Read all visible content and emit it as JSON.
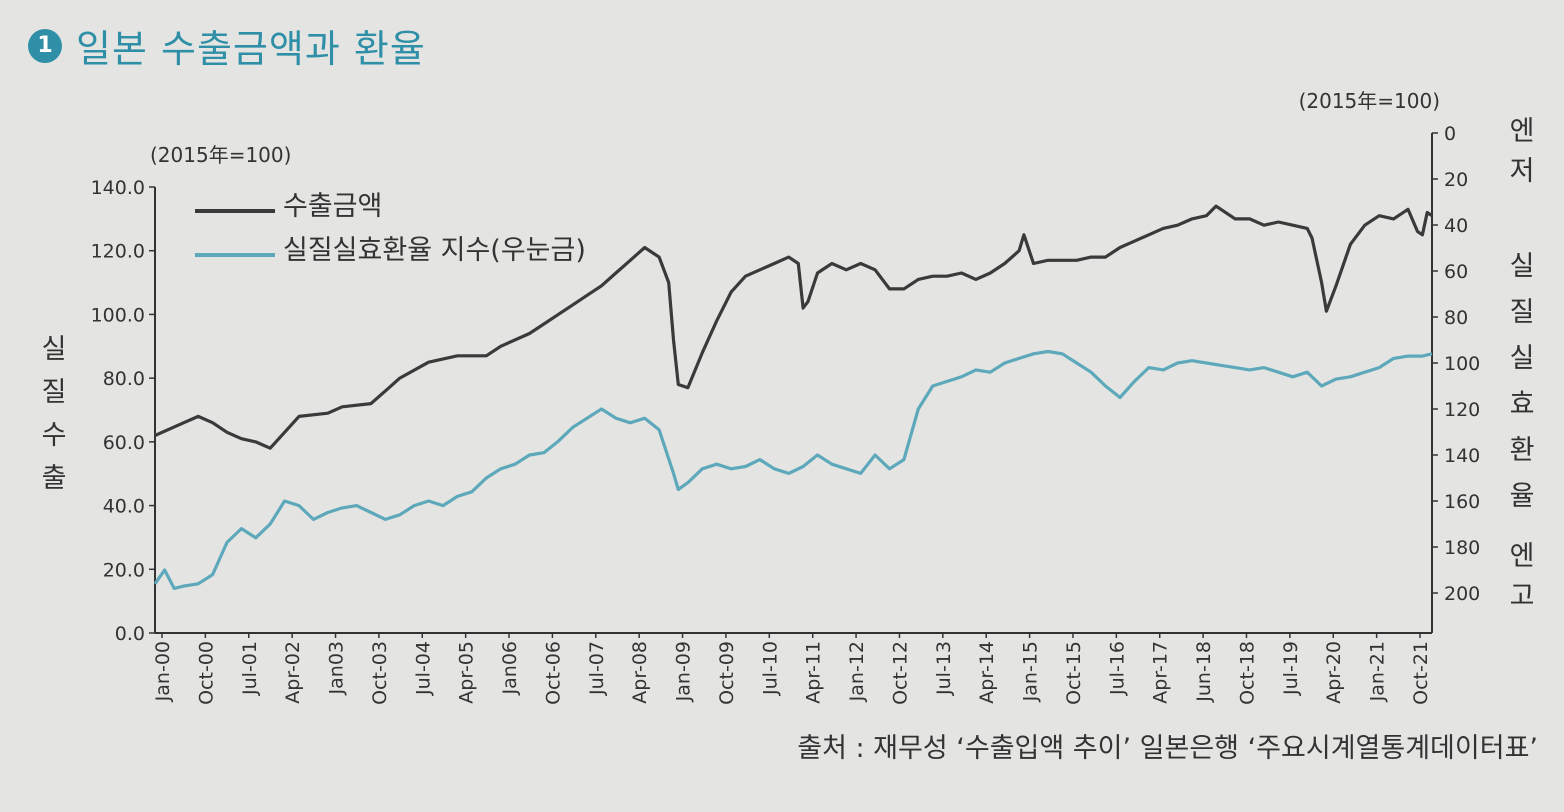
{
  "header": {
    "badge": "1",
    "title": "일본 수출금액과 환율"
  },
  "source_text": "출처 : 재무성 ‘수출입액 추이’ 일본은행 ‘주요시계열통계데이터표’",
  "colors": {
    "export": "#3a3a3a",
    "reer": "#5da8ba",
    "title": "#2f8fa7"
  },
  "chart_data": {
    "type": "line",
    "left_unit": "(2015年=100)",
    "right_unit": "(2015年=100)",
    "left_axis_label": "실질수출",
    "right_axis_top": "엔저",
    "right_axis_label": "실질실효환율",
    "right_axis_bottom": "엔고",
    "left_ylim": [
      0,
      140
    ],
    "left_ticks": [
      "0.0",
      "20.0",
      "40.0",
      "60.0",
      "80.0",
      "100.0",
      "120.0",
      "140.0"
    ],
    "right_ylim_inverted": [
      0,
      200
    ],
    "right_ticks": [
      "0",
      "20",
      "40",
      "60",
      "80",
      "100",
      "120",
      "140",
      "160",
      "180",
      "200"
    ],
    "x_tick_labels": [
      "Jan-00",
      "Oct-00",
      "Jul-01",
      "Apr-02",
      "Jan03",
      "Oct-03",
      "Jul-04",
      "Apr-05",
      "Jan06",
      "Oct-06",
      "Jul-07",
      "Apr-08",
      "Jan-09",
      "Oct-09",
      "Jul-10",
      "Apr-11",
      "Jan-12",
      "Oct-12",
      "Jul-13",
      "Apr-14",
      "Jan-15",
      "Oct-15",
      "Jul-16",
      "Apr-17",
      "Jun-18",
      "Oct-18",
      "Jul-19",
      "Apr-20",
      "Jan-21",
      "Oct-21"
    ],
    "x_range": [
      "2000-01",
      "2022-03"
    ],
    "series": [
      {
        "name": "수출금액",
        "axis": "left",
        "points": [
          [
            "2000-01",
            62
          ],
          [
            "2000-07",
            66
          ],
          [
            "2000-10",
            68
          ],
          [
            "2001-01",
            66
          ],
          [
            "2001-04",
            63
          ],
          [
            "2001-07",
            61
          ],
          [
            "2001-10",
            60
          ],
          [
            "2002-01",
            58
          ],
          [
            "2002-04",
            63
          ],
          [
            "2002-07",
            68
          ],
          [
            "2003-01",
            69
          ],
          [
            "2003-04",
            71
          ],
          [
            "2003-10",
            72
          ],
          [
            "2004-01",
            76
          ],
          [
            "2004-04",
            80
          ],
          [
            "2004-10",
            85
          ],
          [
            "2005-04",
            87
          ],
          [
            "2005-10",
            87
          ],
          [
            "2006-01",
            90
          ],
          [
            "2006-07",
            94
          ],
          [
            "2006-10",
            97
          ],
          [
            "2007-01",
            100
          ],
          [
            "2007-04",
            103
          ],
          [
            "2007-07",
            106
          ],
          [
            "2007-10",
            109
          ],
          [
            "2008-01",
            113
          ],
          [
            "2008-04",
            117
          ],
          [
            "2008-07",
            121
          ],
          [
            "2008-10",
            118
          ],
          [
            "2008-12",
            110
          ],
          [
            "2009-01",
            92
          ],
          [
            "2009-02",
            78
          ],
          [
            "2009-04",
            77
          ],
          [
            "2009-07",
            88
          ],
          [
            "2009-10",
            98
          ],
          [
            "2010-01",
            107
          ],
          [
            "2010-04",
            112
          ],
          [
            "2010-07",
            114
          ],
          [
            "2010-10",
            116
          ],
          [
            "2011-01",
            118
          ],
          [
            "2011-03",
            116
          ],
          [
            "2011-04",
            102
          ],
          [
            "2011-05",
            104
          ],
          [
            "2011-07",
            113
          ],
          [
            "2011-10",
            116
          ],
          [
            "2012-01",
            114
          ],
          [
            "2012-04",
            116
          ],
          [
            "2012-07",
            114
          ],
          [
            "2012-10",
            108
          ],
          [
            "2013-01",
            108
          ],
          [
            "2013-04",
            111
          ],
          [
            "2013-07",
            112
          ],
          [
            "2013-10",
            112
          ],
          [
            "2014-01",
            113
          ],
          [
            "2014-04",
            111
          ],
          [
            "2014-07",
            113
          ],
          [
            "2014-10",
            116
          ],
          [
            "2015-01",
            120
          ],
          [
            "2015-02",
            125
          ],
          [
            "2015-04",
            116
          ],
          [
            "2015-07",
            117
          ],
          [
            "2015-10",
            117
          ],
          [
            "2016-01",
            117
          ],
          [
            "2016-04",
            118
          ],
          [
            "2016-07",
            118
          ],
          [
            "2016-10",
            121
          ],
          [
            "2017-01",
            123
          ],
          [
            "2017-04",
            125
          ],
          [
            "2017-07",
            127
          ],
          [
            "2017-10",
            128
          ],
          [
            "2018-01",
            130
          ],
          [
            "2018-04",
            131
          ],
          [
            "2018-06",
            134
          ],
          [
            "2018-10",
            130
          ],
          [
            "2019-01",
            130
          ],
          [
            "2019-04",
            128
          ],
          [
            "2019-07",
            129
          ],
          [
            "2019-10",
            128
          ],
          [
            "2020-01",
            127
          ],
          [
            "2020-02",
            124
          ],
          [
            "2020-04",
            110
          ],
          [
            "2020-05",
            101
          ],
          [
            "2020-07",
            109
          ],
          [
            "2020-10",
            122
          ],
          [
            "2021-01",
            128
          ],
          [
            "2021-04",
            131
          ],
          [
            "2021-07",
            130
          ],
          [
            "2021-10",
            133
          ],
          [
            "2021-12",
            126
          ],
          [
            "2022-01",
            125
          ],
          [
            "2022-02",
            132
          ],
          [
            "2022-03",
            131
          ]
        ]
      },
      {
        "name": "실질실효환율 지수(우눈금)",
        "axis": "right",
        "points": [
          [
            "2000-01",
            196
          ],
          [
            "2000-03",
            190
          ],
          [
            "2000-05",
            198
          ],
          [
            "2000-07",
            197
          ],
          [
            "2000-10",
            196
          ],
          [
            "2001-01",
            192
          ],
          [
            "2001-04",
            178
          ],
          [
            "2001-07",
            172
          ],
          [
            "2001-10",
            176
          ],
          [
            "2002-01",
            170
          ],
          [
            "2002-04",
            160
          ],
          [
            "2002-07",
            162
          ],
          [
            "2002-10",
            168
          ],
          [
            "2003-01",
            165
          ],
          [
            "2003-04",
            163
          ],
          [
            "2003-07",
            162
          ],
          [
            "2003-10",
            165
          ],
          [
            "2004-01",
            168
          ],
          [
            "2004-04",
            166
          ],
          [
            "2004-07",
            162
          ],
          [
            "2004-10",
            160
          ],
          [
            "2005-01",
            162
          ],
          [
            "2005-04",
            158
          ],
          [
            "2005-07",
            156
          ],
          [
            "2005-10",
            150
          ],
          [
            "2006-01",
            146
          ],
          [
            "2006-04",
            144
          ],
          [
            "2006-07",
            140
          ],
          [
            "2006-10",
            139
          ],
          [
            "2007-01",
            134
          ],
          [
            "2007-04",
            128
          ],
          [
            "2007-07",
            124
          ],
          [
            "2007-10",
            120
          ],
          [
            "2008-01",
            124
          ],
          [
            "2008-04",
            126
          ],
          [
            "2008-07",
            124
          ],
          [
            "2008-10",
            129
          ],
          [
            "2009-01",
            148
          ],
          [
            "2009-02",
            155
          ],
          [
            "2009-04",
            152
          ],
          [
            "2009-07",
            146
          ],
          [
            "2009-10",
            144
          ],
          [
            "2010-01",
            146
          ],
          [
            "2010-04",
            145
          ],
          [
            "2010-07",
            142
          ],
          [
            "2010-10",
            146
          ],
          [
            "2011-01",
            148
          ],
          [
            "2011-04",
            145
          ],
          [
            "2011-07",
            140
          ],
          [
            "2011-10",
            144
          ],
          [
            "2012-01",
            146
          ],
          [
            "2012-04",
            148
          ],
          [
            "2012-07",
            140
          ],
          [
            "2012-10",
            146
          ],
          [
            "2013-01",
            142
          ],
          [
            "2013-04",
            120
          ],
          [
            "2013-07",
            110
          ],
          [
            "2013-10",
            108
          ],
          [
            "2014-01",
            106
          ],
          [
            "2014-04",
            103
          ],
          [
            "2014-07",
            104
          ],
          [
            "2014-10",
            100
          ],
          [
            "2015-01",
            98
          ],
          [
            "2015-04",
            96
          ],
          [
            "2015-07",
            95
          ],
          [
            "2015-10",
            96
          ],
          [
            "2016-01",
            100
          ],
          [
            "2016-04",
            104
          ],
          [
            "2016-07",
            110
          ],
          [
            "2016-10",
            115
          ],
          [
            "2017-01",
            108
          ],
          [
            "2017-04",
            102
          ],
          [
            "2017-07",
            103
          ],
          [
            "2017-10",
            100
          ],
          [
            "2018-01",
            99
          ],
          [
            "2018-04",
            100
          ],
          [
            "2018-07",
            101
          ],
          [
            "2018-10",
            102
          ],
          [
            "2019-01",
            103
          ],
          [
            "2019-04",
            102
          ],
          [
            "2019-07",
            104
          ],
          [
            "2019-10",
            106
          ],
          [
            "2020-01",
            104
          ],
          [
            "2020-04",
            110
          ],
          [
            "2020-07",
            107
          ],
          [
            "2020-10",
            106
          ],
          [
            "2021-01",
            104
          ],
          [
            "2021-04",
            102
          ],
          [
            "2021-07",
            98
          ],
          [
            "2021-10",
            97
          ],
          [
            "2022-01",
            97
          ],
          [
            "2022-03",
            96
          ]
        ]
      }
    ]
  }
}
